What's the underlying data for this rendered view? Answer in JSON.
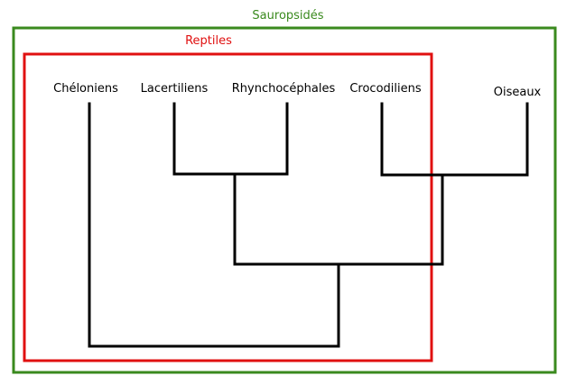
{
  "groups": {
    "outer": {
      "label": "Sauropsidés",
      "color": "#3a8a1e"
    },
    "inner": {
      "label": "Reptiles",
      "color": "#e01010"
    }
  },
  "taxa": {
    "cheloniens": "Chéloniens",
    "lacertiliens": "Lacertiliens",
    "rhynchocephales": "Rhynchocéphales",
    "crocodiliens": "Crocodiliens",
    "oiseaux": "Oiseaux"
  },
  "tree_line_color": "#000000"
}
